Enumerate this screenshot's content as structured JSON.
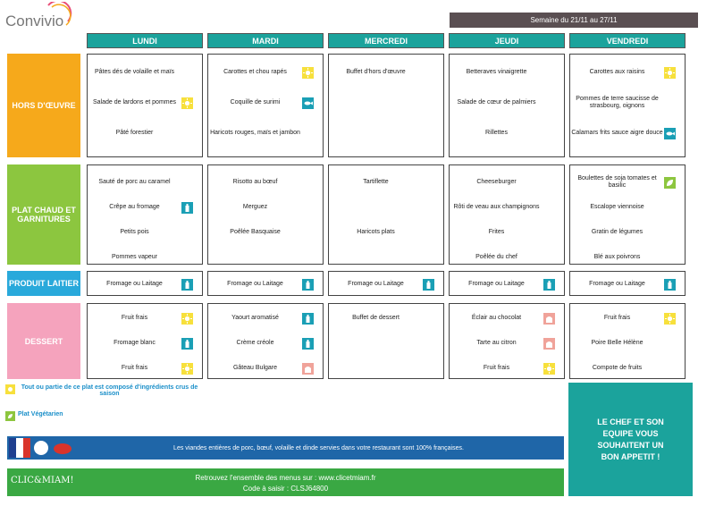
{
  "header": {
    "logo": "Convivio",
    "week": "Semaine du 21/11 au 27/11"
  },
  "menu": {
    "days": [
      "LUNDI",
      "MARDI",
      "MERCREDI",
      "JEUDI",
      "VENDREDI"
    ],
    "rows": [
      {
        "label": "HORS D'ŒUVRE",
        "color": "#f6a91b",
        "cells": [
          [
            {
              "text": "Pâtes dés de volaille et maïs"
            },
            {
              "text": "Salade de lardons et pommes",
              "icon": "sun"
            },
            {
              "text": "Pâté forestier"
            }
          ],
          [
            {
              "text": "Carottes et chou rapés",
              "icon": "sun"
            },
            {
              "text": "Coquille de surimi",
              "icon": "fish"
            },
            {
              "text": "Haricots rouges, maïs et jambon"
            }
          ],
          [
            {
              "text": "Buffet d'hors d'œuvre"
            }
          ],
          [
            {
              "text": "Betteraves vinaigrette"
            },
            {
              "text": "Salade de cœur de palmiers"
            },
            {
              "text": "Rillettes"
            }
          ],
          [
            {
              "text": "Carottes aux raisins",
              "icon": "sun"
            },
            {
              "text": "Pommes de terre saucisse de strasbourg, oignons"
            },
            {
              "text": "Calamars frits sauce aigre douce",
              "icon": "fish"
            }
          ]
        ]
      },
      {
        "label": "PLAT CHAUD ET GARNITURES",
        "color": "#8cc63f",
        "cells": [
          [
            {
              "text": "Sauté de porc au caramel"
            },
            {
              "text": "Crêpe au fromage",
              "icon": "dairy"
            },
            {
              "text": "Petits pois"
            },
            {
              "text": "Pommes vapeur"
            }
          ],
          [
            {
              "text": "Risotto au bœuf"
            },
            {
              "text": "Merguez"
            },
            {
              "text": "Poêlée Basquaise"
            }
          ],
          [
            {
              "text": "Tartiflette"
            },
            null,
            {
              "text": "Haricots plats"
            }
          ],
          [
            {
              "text": "Cheeseburger"
            },
            {
              "text": "Rôti de veau aux champignons"
            },
            {
              "text": "Frites"
            },
            {
              "text": "Poêlée du chef"
            }
          ],
          [
            {
              "text": "Boulettes de soja tomates et basilic",
              "icon": "leaf"
            },
            {
              "text": "Escalope viennoise"
            },
            {
              "text": "Gratin de légumes"
            },
            {
              "text": "Blé aux poivrons"
            }
          ]
        ]
      },
      {
        "label": "PRODUIT LAITIER",
        "color": "#29a9db",
        "cells": [
          [
            {
              "text": "Fromage ou Laitage",
              "icon": "dairy"
            }
          ],
          [
            {
              "text": "Fromage ou Laitage",
              "icon": "dairy"
            }
          ],
          [
            {
              "text": "Fromage ou Laitage",
              "icon": "dairy"
            }
          ],
          [
            {
              "text": "Fromage ou Laitage",
              "icon": "dairy"
            }
          ],
          [
            {
              "text": "Fromage ou Laitage",
              "icon": "dairy"
            }
          ]
        ]
      },
      {
        "label": "DESSERT",
        "color": "#f5a3bd",
        "cells": [
          [
            {
              "text": "Fruit frais",
              "icon": "sun"
            },
            {
              "text": "Fromage blanc",
              "icon": "dairy"
            },
            {
              "text": "Fruit frais",
              "icon": "sun"
            }
          ],
          [
            {
              "text": "Yaourt aromatisé",
              "icon": "dairy"
            },
            {
              "text": "Crème créole",
              "icon": "dairy"
            },
            {
              "text": "Gâteau Bulgare",
              "icon": "cake"
            }
          ],
          [
            {
              "text": "Buffet de dessert"
            }
          ],
          [
            {
              "text": "Éclair au chocolat",
              "icon": "cake"
            },
            {
              "text": "Tarte au citron",
              "icon": "cake"
            },
            {
              "text": "Fruit frais",
              "icon": "sun"
            }
          ],
          [
            {
              "text": "Fruit frais",
              "icon": "sun"
            },
            {
              "text": "Poire Belle Hélène"
            },
            {
              "text": "Compote de fruits"
            }
          ]
        ]
      }
    ]
  },
  "legend": {
    "season": "Tout ou partie de ce plat est composé d'ingrédients crus de saison",
    "vegetarian": "Plat Végétarien"
  },
  "chef": "LE CHEF ET SON EQUIPE VOUS SOUHAITENT UN BON APPETIT !",
  "banner": "Les viandes entières de porc, bœuf, volaille et dinde servies dans votre restaurant sont 100% françaises.",
  "footer": {
    "logo": "CLIC&MIAM!",
    "site": "Retrouvez l'ensemble des menus sur : www.clicetmiam.fr",
    "code": "Code à saisir : CLSJ64800"
  }
}
